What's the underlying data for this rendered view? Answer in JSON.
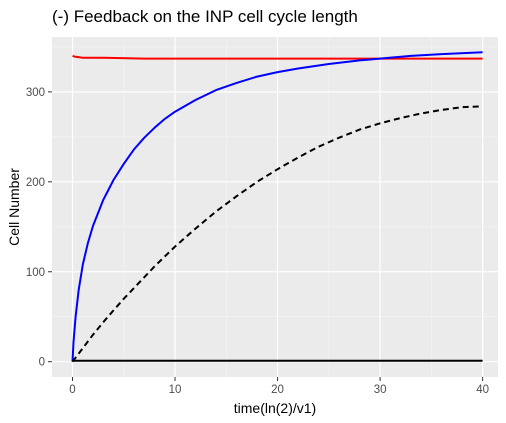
{
  "chart_data": {
    "type": "line",
    "title": "(-) Feedback on the INP cell cycle length",
    "xlabel": "time(ln(2)/v1)",
    "ylabel": "Cell Number",
    "xlim": [
      -2,
      41.5
    ],
    "ylim": [
      -17,
      361
    ],
    "x_ticks": [
      0,
      10,
      20,
      30,
      40
    ],
    "y_ticks": [
      0,
      100,
      200,
      300
    ],
    "x_minor": [
      5,
      15,
      25,
      35
    ],
    "y_minor": [
      50,
      150,
      250,
      350
    ],
    "grid": true,
    "legend": "none",
    "series": [
      {
        "color": "#ff0000",
        "style": "solid",
        "x": [
          0,
          0.3,
          1,
          3,
          7,
          10,
          20,
          30,
          40
        ],
        "y": [
          340,
          339,
          338,
          338,
          337,
          337,
          337,
          337,
          337
        ]
      },
      {
        "color": "#0000ff",
        "style": "solid",
        "x": [
          0,
          0.1,
          0.3,
          0.6,
          1,
          1.5,
          2,
          3,
          4,
          5,
          6,
          7,
          8,
          9,
          10,
          12,
          14,
          16,
          18,
          20,
          22,
          25,
          28,
          30,
          33,
          36,
          40
        ],
        "y": [
          0,
          22,
          50,
          80,
          108,
          132,
          151,
          180,
          202,
          220,
          236,
          249,
          260,
          270,
          278,
          291,
          302,
          310,
          317,
          322,
          326,
          331,
          335,
          337,
          340,
          342,
          344
        ]
      },
      {
        "color": "#000000",
        "style": "dashed",
        "x": [
          0,
          1,
          2,
          3,
          4,
          5,
          6,
          7,
          8,
          10,
          12,
          14,
          16,
          18,
          20,
          22,
          24,
          26,
          28,
          30,
          32,
          34,
          36,
          38,
          40
        ],
        "y": [
          0,
          15,
          30,
          44,
          57,
          70,
          82,
          94,
          106,
          128,
          148,
          167,
          184,
          200,
          214,
          227,
          239,
          249,
          258,
          265,
          271,
          276,
          280,
          283,
          284
        ]
      },
      {
        "color": "#000000",
        "style": "solid",
        "x": [
          0,
          40
        ],
        "y": [
          1,
          1
        ]
      }
    ]
  }
}
